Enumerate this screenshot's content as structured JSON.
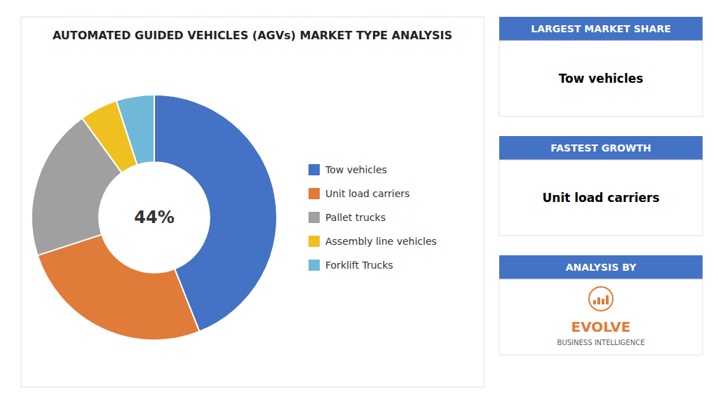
{
  "chart_data": {
    "type": "pie",
    "title": "AUTOMATED GUIDED VEHICLES (AGVs) MARKET TYPE ANALYSIS",
    "categories": [
      "Tow vehicles",
      "Unit load carriers",
      "Pallet trucks",
      "Assembly line vehicles",
      "Forklift Trucks"
    ],
    "values": [
      44,
      26,
      20,
      5,
      5
    ],
    "colors": [
      "#4472C4",
      "#E07B39",
      "#A0A0A0",
      "#F0C020",
      "#70B8D8"
    ],
    "legend": "right",
    "annotations": [
      "44%"
    ],
    "panels": [
      {
        "header": "LARGEST MARKET SHARE",
        "body": [
          "Tow vehicles"
        ]
      },
      {
        "header": "FASTEST GROWTH",
        "body": [
          "Unit load carriers"
        ]
      },
      {
        "header": "ANALYSIS BY",
        "body": [
          "EVOLVE",
          "BUSINESS INTELLIGENCE"
        ]
      }
    ]
  }
}
